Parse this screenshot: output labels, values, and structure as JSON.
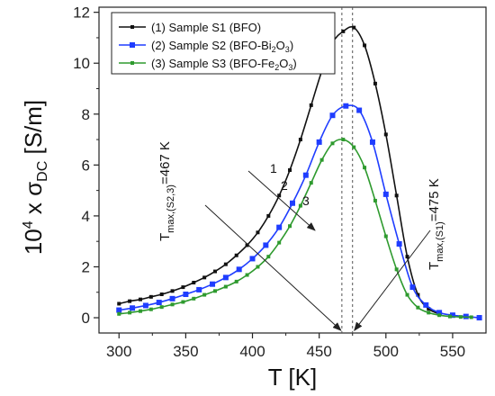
{
  "chart_data": {
    "type": "line",
    "xlabel": "T [K]",
    "ylabel_main": "10",
    "ylabel_sup": "4",
    "ylabel_mid": " x σ",
    "ylabel_sub": "DC",
    "ylabel_unit": " [S/m]",
    "xlim": [
      285,
      575
    ],
    "ylim": [
      -0.6,
      12.2
    ],
    "xticks": [
      300,
      350,
      400,
      450,
      500,
      550
    ],
    "yticks": [
      0,
      2,
      4,
      6,
      8,
      10,
      12
    ],
    "legend_position": "top-left",
    "series": [
      {
        "name": "(1) Sample S1 (BFO)",
        "name_parts": [
          "(1) Sample S1 (BFO)"
        ],
        "color": "#111111",
        "marker_size": 4,
        "x": [
          300,
          308,
          316,
          324,
          332,
          340,
          348,
          356,
          364,
          372,
          380,
          388,
          396,
          404,
          412,
          420,
          428,
          436,
          444,
          452,
          460,
          468,
          476,
          484,
          492,
          500,
          508,
          516,
          524,
          532,
          540
        ],
        "y": [
          0.55,
          0.65,
          0.72,
          0.82,
          0.92,
          1.05,
          1.2,
          1.38,
          1.58,
          1.82,
          2.1,
          2.45,
          2.85,
          3.35,
          4.0,
          4.8,
          5.8,
          7.0,
          8.35,
          9.7,
          10.8,
          11.25,
          11.4,
          10.7,
          9.2,
          7.2,
          4.8,
          2.4,
          0.9,
          0.35,
          0.15
        ]
      },
      {
        "name": "(2) Sample S2 (BFO-Bi2O3)",
        "name_parts": [
          "(2) Sample S2 (BFO-Bi",
          "2",
          "O",
          "3",
          ")"
        ],
        "color": "#1f3dff",
        "marker_size": 6,
        "x": [
          300,
          310,
          320,
          330,
          340,
          350,
          360,
          370,
          380,
          390,
          400,
          410,
          420,
          430,
          440,
          450,
          460,
          470,
          480,
          490,
          500,
          510,
          520,
          530,
          540,
          550,
          560,
          570
        ],
        "y": [
          0.3,
          0.38,
          0.48,
          0.6,
          0.75,
          0.92,
          1.1,
          1.32,
          1.58,
          1.9,
          2.32,
          2.85,
          3.55,
          4.5,
          5.6,
          6.9,
          7.95,
          8.32,
          8.15,
          6.9,
          4.85,
          2.9,
          1.2,
          0.5,
          0.2,
          0.1,
          0.05,
          0.0
        ]
      },
      {
        "name": "(3) Sample S3 (BFO-Fe2O3)",
        "name_parts": [
          "(3) Sample S3 (BFO-Fe",
          "2",
          "O",
          "3",
          ")"
        ],
        "color": "#2e9a2e",
        "marker_size": 4,
        "x": [
          300,
          308,
          316,
          324,
          332,
          340,
          348,
          356,
          364,
          372,
          380,
          388,
          396,
          404,
          412,
          420,
          428,
          436,
          444,
          452,
          460,
          468,
          476,
          484,
          492,
          500,
          508,
          516,
          524,
          532,
          540,
          548,
          556,
          564
        ],
        "y": [
          0.15,
          0.2,
          0.26,
          0.33,
          0.42,
          0.52,
          0.62,
          0.75,
          0.9,
          1.05,
          1.22,
          1.42,
          1.68,
          2.0,
          2.4,
          2.95,
          3.6,
          4.4,
          5.3,
          6.2,
          6.85,
          7.0,
          6.7,
          5.9,
          4.6,
          3.2,
          1.9,
          0.9,
          0.4,
          0.2,
          0.1,
          0.05,
          0.03,
          0.02
        ]
      }
    ],
    "annotations": {
      "tmax_s23": {
        "prefix": "T",
        "sub": "max,(S2,3)",
        "suffix": "=467 K",
        "value": 467
      },
      "tmax_s1": {
        "prefix": "T",
        "sub": "max,(S1)",
        "suffix": "=475 K",
        "value": 475
      },
      "curve_labels": [
        "1",
        "2",
        "3"
      ]
    }
  }
}
